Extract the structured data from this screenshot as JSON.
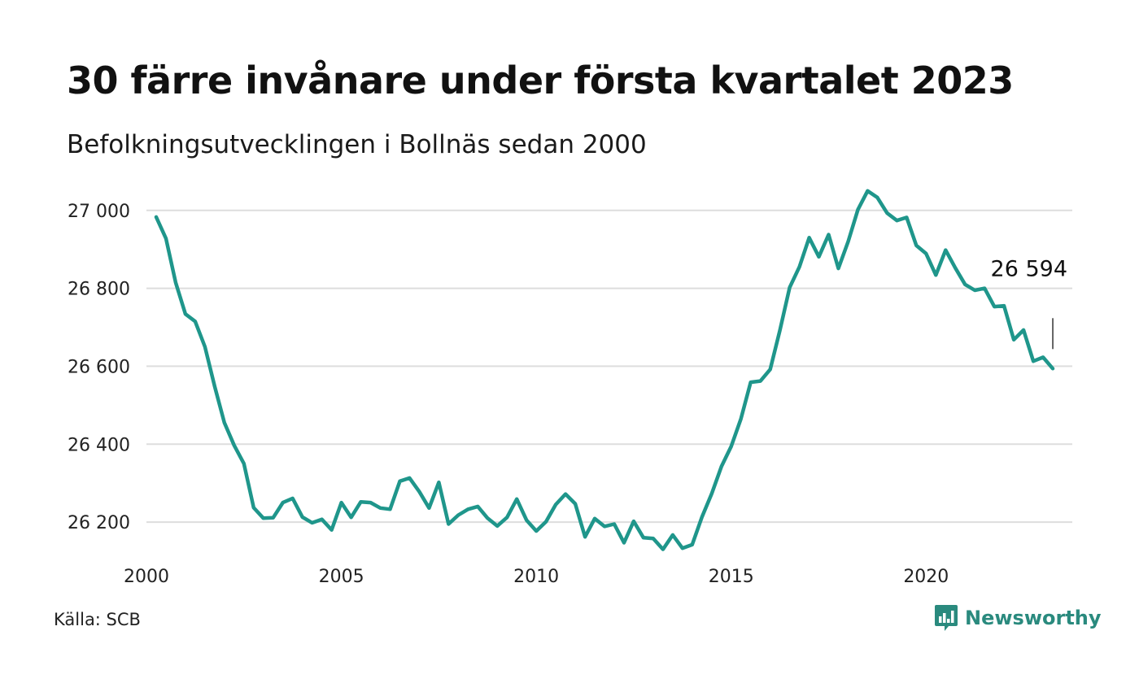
{
  "title": "30 färre invånare under första kvartalet 2023",
  "subtitle": "Befolkningsutvecklingen i Bollnäs sedan 2000",
  "source": "Källa: SCB",
  "brand": {
    "name": "Newsworthy",
    "icon": "newsworthy-chat-bar-icon",
    "color": "#2a8a7e"
  },
  "chart_data": {
    "type": "line",
    "title": "30 färre invånare under första kvartalet 2023",
    "subtitle": "Befolkningsutvecklingen i Bollnäs sedan 2000",
    "xlabel": "",
    "ylabel": "",
    "x_ticks": [
      "2000",
      "2005",
      "2010",
      "2015",
      "2020"
    ],
    "y_ticks": [
      "26 200",
      "26 400",
      "26 600",
      "26 800",
      "27 000"
    ],
    "y_tick_values": [
      26200,
      26400,
      26600,
      26800,
      27000
    ],
    "ylim": [
      26100,
      27060
    ],
    "xlim": [
      2000.0,
      2023.75
    ],
    "grid": true,
    "line_color": "#1f968b",
    "annotation": {
      "text": "26 594",
      "value": 26594
    },
    "series": [
      {
        "x": [
          2000.25,
          2000.5,
          2000.75,
          2001.0,
          2001.25,
          2001.5,
          2001.75,
          2002.0,
          2002.25,
          2002.5,
          2002.75,
          2003.0,
          2003.25,
          2003.5,
          2003.75,
          2004.0,
          2004.25,
          2004.5,
          2004.75,
          2005.0,
          2005.25,
          2005.5,
          2005.75,
          2006.0,
          2006.25,
          2006.5,
          2006.75,
          2007.0,
          2007.25,
          2007.5,
          2007.75,
          2008.0,
          2008.25,
          2008.5,
          2008.75,
          2009.0,
          2009.25,
          2009.5,
          2009.75,
          2010.0,
          2010.25,
          2010.5,
          2010.75,
          2011.0,
          2011.25,
          2011.5,
          2011.75,
          2012.0,
          2012.25,
          2012.5,
          2012.75,
          2013.0,
          2013.25,
          2013.5,
          2013.75,
          2014.0,
          2014.25,
          2014.5,
          2014.75,
          2015.0,
          2015.25,
          2015.5,
          2015.75,
          2016.0,
          2016.25,
          2016.5,
          2016.75,
          2017.0,
          2017.25,
          2017.5,
          2017.75,
          2018.0,
          2018.25,
          2018.5,
          2018.75,
          2019.0,
          2019.25,
          2019.5,
          2019.75,
          2020.0,
          2020.25,
          2020.5,
          2020.75,
          2021.0,
          2021.25,
          2021.5,
          2021.75,
          2022.0,
          2022.25,
          2022.5,
          2022.75,
          2023.0,
          2023.25
        ],
        "values": [
          26983,
          26928,
          26815,
          26734,
          26715,
          26650,
          26548,
          26455,
          26397,
          26350,
          26237,
          26210,
          26211,
          26250,
          26261,
          26213,
          26198,
          26207,
          26180,
          26250,
          26212,
          26252,
          26250,
          26236,
          26233,
          26305,
          26313,
          26278,
          26236,
          26302,
          26195,
          26218,
          26233,
          26240,
          26210,
          26190,
          26212,
          26259,
          26205,
          26177,
          26201,
          26245,
          26272,
          26247,
          26162,
          26209,
          26189,
          26195,
          26147,
          26202,
          26160,
          26158,
          26130,
          26167,
          26133,
          26142,
          26213,
          26273,
          26343,
          26394,
          26465,
          26559,
          26562,
          26592,
          26692,
          26802,
          26855,
          26930,
          26881,
          26938,
          26851,
          26920,
          27002,
          27050,
          27033,
          26993,
          26974,
          26982,
          26910,
          26889,
          26834,
          26898,
          26852,
          26810,
          26795,
          26800,
          26753,
          26755,
          26668,
          26693,
          26613,
          26623,
          26594
        ]
      }
    ]
  }
}
